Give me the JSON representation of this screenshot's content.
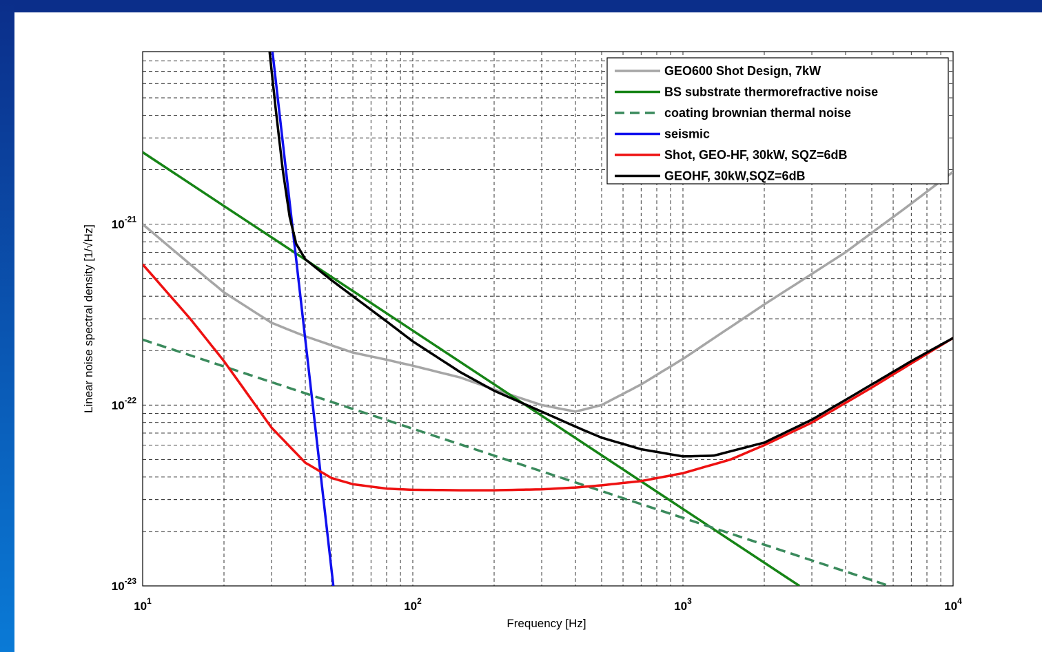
{
  "colors": {
    "frame_gradient_top": "#0b2e8a",
    "frame_gradient_bottom": "#0a7ad6",
    "background": "#ffffff",
    "grid": "#000000"
  },
  "chart_data": {
    "type": "line",
    "title": "",
    "xlabel": "Frequency  [Hz]",
    "ylabel": "Linear noise spectral density  [1/√Hz]",
    "xscale": "log",
    "yscale": "log",
    "xlim": [
      10,
      10000
    ],
    "ylim": [
      1e-23,
      9e-21
    ],
    "grid": true,
    "legend_position": "top-right",
    "x_ticks": [
      {
        "base": "10",
        "exp": "1"
      },
      {
        "base": "10",
        "exp": "2"
      },
      {
        "base": "10",
        "exp": "3"
      },
      {
        "base": "10",
        "exp": "4"
      }
    ],
    "y_ticks": [
      {
        "base": "10",
        "exp": "-23",
        "value": 1e-23
      },
      {
        "base": "10",
        "exp": "-22",
        "value": 1e-22
      },
      {
        "base": "10",
        "exp": "-21",
        "value": 1e-21
      }
    ],
    "series": [
      {
        "name": "GEO600 Shot Design, 7kW",
        "color": "#a6a6a6",
        "dash": "solid",
        "x": [
          10,
          15,
          20,
          30,
          40,
          60,
          80,
          100,
          150,
          200,
          300,
          400,
          500,
          700,
          1000,
          2000,
          4000,
          7000,
          10000
        ],
        "y": [
          1e-21,
          6e-22,
          4.2e-22,
          2.85e-22,
          2.4e-22,
          1.95e-22,
          1.78e-22,
          1.65e-22,
          1.42e-22,
          1.22e-22,
          1e-22,
          9.2e-23,
          1e-22,
          1.3e-22,
          1.8e-22,
          3.6e-22,
          7e-22,
          1.3e-21,
          1.95e-21
        ]
      },
      {
        "name": "BS substrate thermorefractive noise",
        "color": "#168416",
        "dash": "solid",
        "x": [
          10,
          2700
        ],
        "y": [
          2.5e-21,
          1e-23
        ]
      },
      {
        "name": "coating brownian thermal noise",
        "color": "#3a8a5c",
        "dash": "dashed",
        "x": [
          10,
          5800
        ],
        "y": [
          2.3e-22,
          1e-23
        ]
      },
      {
        "name": "seismic",
        "color": "#1010ee",
        "dash": "solid",
        "x": [
          30,
          50.8
        ],
        "y": [
          1e-20,
          1e-23
        ]
      },
      {
        "name": "Shot, GEO-HF, 30kW, SQZ=6dB",
        "color": "#ee1111",
        "dash": "solid",
        "x": [
          10,
          15,
          20,
          30,
          40,
          50,
          60,
          80,
          100,
          150,
          200,
          300,
          400,
          500,
          700,
          1000,
          1500,
          2000,
          3000,
          5000,
          7000,
          10000
        ],
        "y": [
          6e-22,
          3e-22,
          1.75e-22,
          7.5e-23,
          4.8e-23,
          3.95e-23,
          3.65e-23,
          3.45e-23,
          3.4e-23,
          3.38e-23,
          3.38e-23,
          3.42e-23,
          3.5e-23,
          3.6e-23,
          3.8e-23,
          4.2e-23,
          5e-23,
          6e-23,
          8e-23,
          1.25e-22,
          1.7e-22,
          2.35e-22
        ]
      },
      {
        "name": "GEOHF, 30kW,SQZ=6dB",
        "color": "#000000",
        "dash": "solid",
        "x": [
          29.5,
          31,
          33,
          35,
          37,
          40,
          50,
          60,
          80,
          100,
          150,
          200,
          300,
          400,
          500,
          700,
          1000,
          1300,
          2000,
          3000,
          5000,
          7000,
          10000
        ],
        "y": [
          9e-21,
          4.5e-21,
          2e-21,
          1.1e-21,
          7.8e-22,
          6.4e-22,
          4.9e-22,
          4e-22,
          2.9e-22,
          2.25e-22,
          1.52e-22,
          1.2e-22,
          9.2e-23,
          7.6e-23,
          6.6e-23,
          5.7e-23,
          5.2e-23,
          5.25e-23,
          6.2e-23,
          8.3e-23,
          1.3e-22,
          1.75e-22,
          2.35e-22
        ]
      }
    ]
  }
}
